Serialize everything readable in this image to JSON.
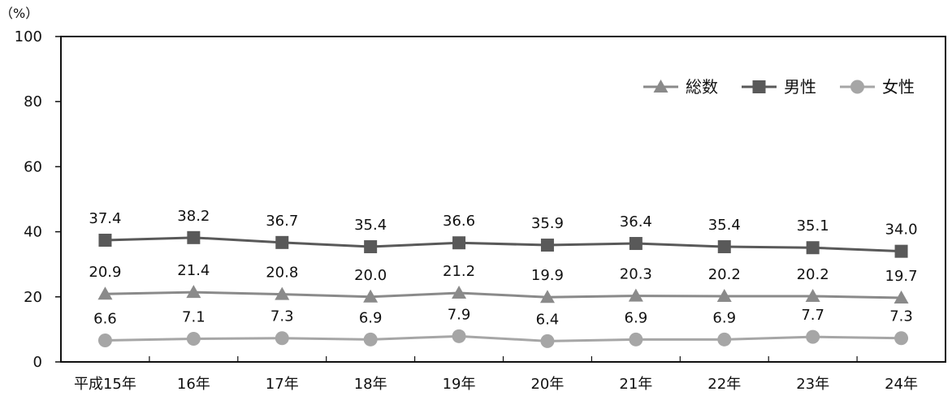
{
  "chart_data": {
    "type": "line",
    "y_unit": "（%）",
    "categories": [
      "平成15年",
      "16年",
      "17年",
      "18年",
      "19年",
      "20年",
      "21年",
      "22年",
      "23年",
      "24年"
    ],
    "ylim": [
      0,
      100
    ],
    "yticks": [
      0,
      20,
      40,
      60,
      80,
      100
    ],
    "grid": false,
    "legend_position": "top-right",
    "series": [
      {
        "name": "総数",
        "marker": "triangle",
        "color": "#8a8a8a",
        "values": [
          20.9,
          21.4,
          20.8,
          20.0,
          21.2,
          19.9,
          20.3,
          20.2,
          20.2,
          19.7
        ]
      },
      {
        "name": "男性",
        "marker": "square",
        "color": "#595959",
        "values": [
          37.4,
          38.2,
          36.7,
          35.4,
          36.6,
          35.9,
          36.4,
          35.4,
          35.1,
          34.0
        ]
      },
      {
        "name": "女性",
        "marker": "circle",
        "color": "#a6a6a6",
        "values": [
          6.6,
          7.1,
          7.3,
          6.9,
          7.9,
          6.4,
          6.9,
          6.9,
          7.7,
          7.3
        ]
      }
    ]
  }
}
